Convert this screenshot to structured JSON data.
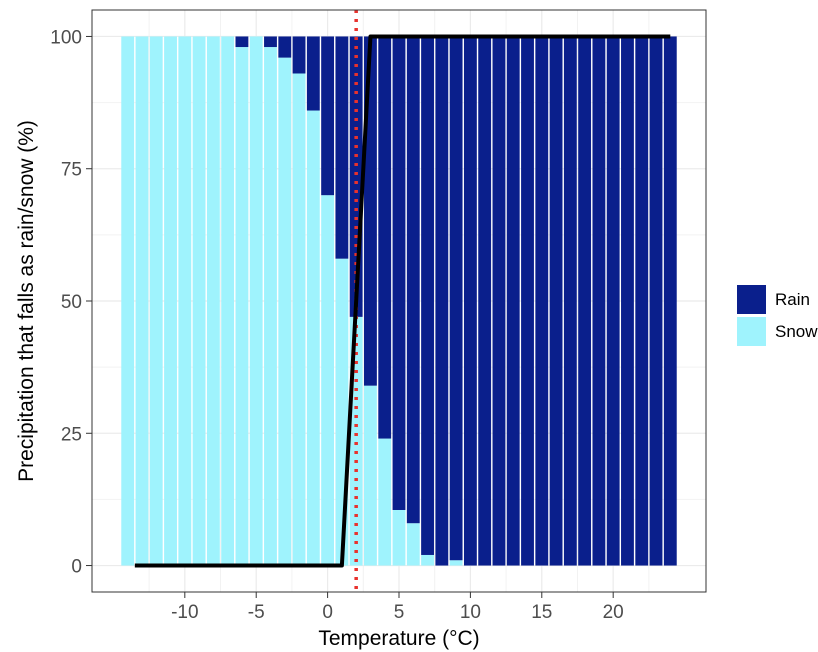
{
  "chart_data": {
    "type": "bar",
    "stacked": true,
    "xlabel": "Temperature (°C)",
    "ylabel": "Precipitation that falls as rain/snow (%)",
    "xlim": [
      -16.5,
      26.5
    ],
    "ylim": [
      -5,
      105
    ],
    "x_ticks": [
      -10,
      -5,
      0,
      5,
      10,
      15,
      20
    ],
    "y_ticks": [
      0,
      25,
      50,
      75,
      100
    ],
    "grid": true,
    "legend_position": "right",
    "x": [
      -14,
      -13,
      -12,
      -11,
      -10,
      -9,
      -8,
      -7,
      -6,
      -5,
      -4,
      -3,
      -2,
      -1,
      0,
      1,
      2,
      3,
      4,
      5,
      6,
      7,
      8,
      9,
      10,
      11,
      12,
      13,
      14,
      15,
      16,
      17,
      18,
      19,
      20,
      21,
      22,
      23,
      24
    ],
    "series": [
      {
        "name": "Snow",
        "color": "#9ff3fd",
        "values": [
          100,
          100,
          100,
          100,
          100,
          100,
          100,
          100,
          98,
          100,
          98,
          96,
          93,
          86,
          70,
          58,
          47,
          34,
          24,
          10.5,
          8,
          2,
          0,
          1,
          0,
          0,
          0,
          0,
          0,
          0,
          0,
          0,
          0,
          0,
          0,
          0,
          0,
          0,
          0
        ]
      },
      {
        "name": "Rain",
        "color": "#0a1f8c",
        "values": [
          0,
          0,
          0,
          0,
          0,
          0,
          0,
          0,
          2,
          0,
          2,
          4,
          7,
          14,
          30,
          42,
          53,
          66,
          76,
          89.5,
          92,
          98,
          100,
          99,
          100,
          100,
          100,
          100,
          100,
          100,
          100,
          100,
          100,
          100,
          100,
          100,
          100,
          100,
          100
        ]
      }
    ],
    "threshold_line": {
      "x": [
        -13.5,
        1,
        3,
        24
      ],
      "y": [
        0,
        0,
        100,
        100
      ],
      "color": "#000000"
    },
    "reference_line": {
      "x": 2,
      "color": "#e8322d",
      "style": "dotted"
    }
  }
}
